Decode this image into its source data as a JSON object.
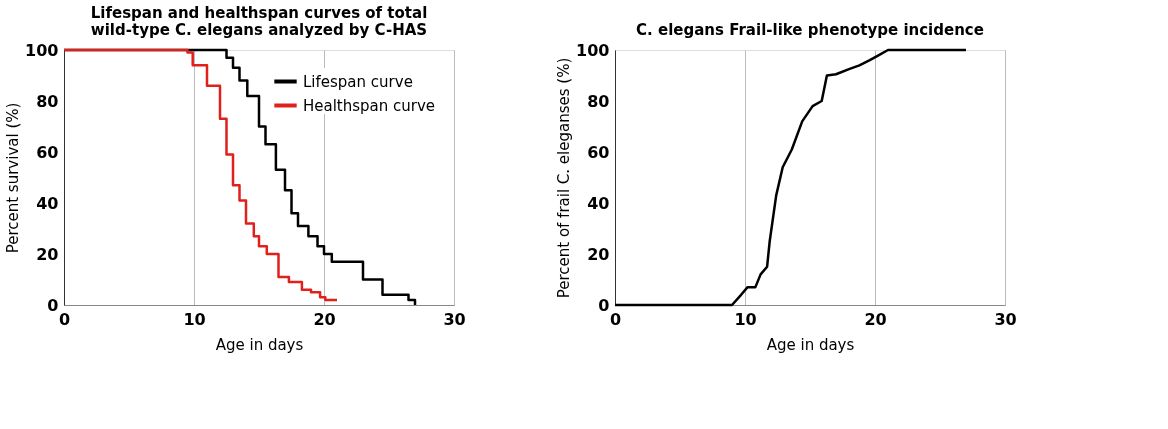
{
  "chart_data": [
    {
      "type": "step",
      "title": "Lifespan and healthspan curves of total\nwild-type C. elegans analyzed by C-HAS",
      "xlabel": "Age in days",
      "ylabel": "Percent survival (%)",
      "xlim": [
        0,
        30
      ],
      "xticks": [
        0,
        10,
        20,
        30
      ],
      "ylim": [
        0,
        100
      ],
      "yticks": [
        0,
        20,
        40,
        60,
        80,
        100
      ],
      "grid": "x",
      "legend": "top right",
      "line_style": "solid",
      "series": [
        {
          "name": "Lifespan curve",
          "color": "#000000",
          "x": [
            0,
            12.5,
            13.0,
            13.5,
            14.1,
            15.0,
            15.5,
            16.3,
            17.0,
            17.5,
            18.0,
            18.8,
            19.5,
            20.0,
            20.6,
            23.0,
            24.5,
            26.5,
            27.0
          ],
          "values": [
            100,
            97,
            93,
            88,
            82,
            70,
            63,
            53,
            45,
            36,
            31,
            27,
            23,
            20,
            17,
            10,
            4,
            2,
            0
          ]
        },
        {
          "name": "Healthspan curve",
          "color": "#e0201b",
          "x": [
            0,
            9.5,
            9.9,
            11.0,
            12.0,
            12.5,
            13.0,
            13.5,
            14.0,
            14.6,
            15.0,
            15.6,
            16.5,
            17.3,
            18.3,
            19.0,
            19.7,
            20.1,
            21.0
          ],
          "values": [
            100,
            99,
            94,
            86,
            73,
            59,
            47,
            41,
            32,
            27,
            23,
            20,
            11,
            9,
            6,
            5,
            3,
            2,
            2
          ]
        }
      ]
    },
    {
      "type": "line",
      "title": "C. elegans Frail-like phenotype incidence",
      "xlabel": "Age in days",
      "ylabel": "Percent of frail C. eleganses (%)",
      "xlim": [
        0,
        30
      ],
      "xticks": [
        0,
        10,
        20,
        30
      ],
      "ylim": [
        0,
        100
      ],
      "yticks": [
        0,
        20,
        40,
        60,
        80,
        100
      ],
      "grid": "x",
      "line_style": "solid",
      "series": [
        {
          "color": "#000000",
          "x": [
            0,
            9.0,
            9.7,
            10.2,
            10.8,
            11.2,
            11.7,
            11.9,
            12.4,
            12.9,
            13.6,
            14.4,
            15.2,
            15.9,
            16.3,
            17.0,
            18.0,
            18.8,
            19.6,
            20.3,
            21.0,
            27.0
          ],
          "values": [
            0,
            0,
            4,
            7,
            7,
            12,
            15,
            25,
            43,
            54,
            61,
            72,
            78,
            80,
            90,
            90.5,
            92.5,
            94,
            96,
            98,
            100,
            100
          ]
        }
      ]
    }
  ]
}
